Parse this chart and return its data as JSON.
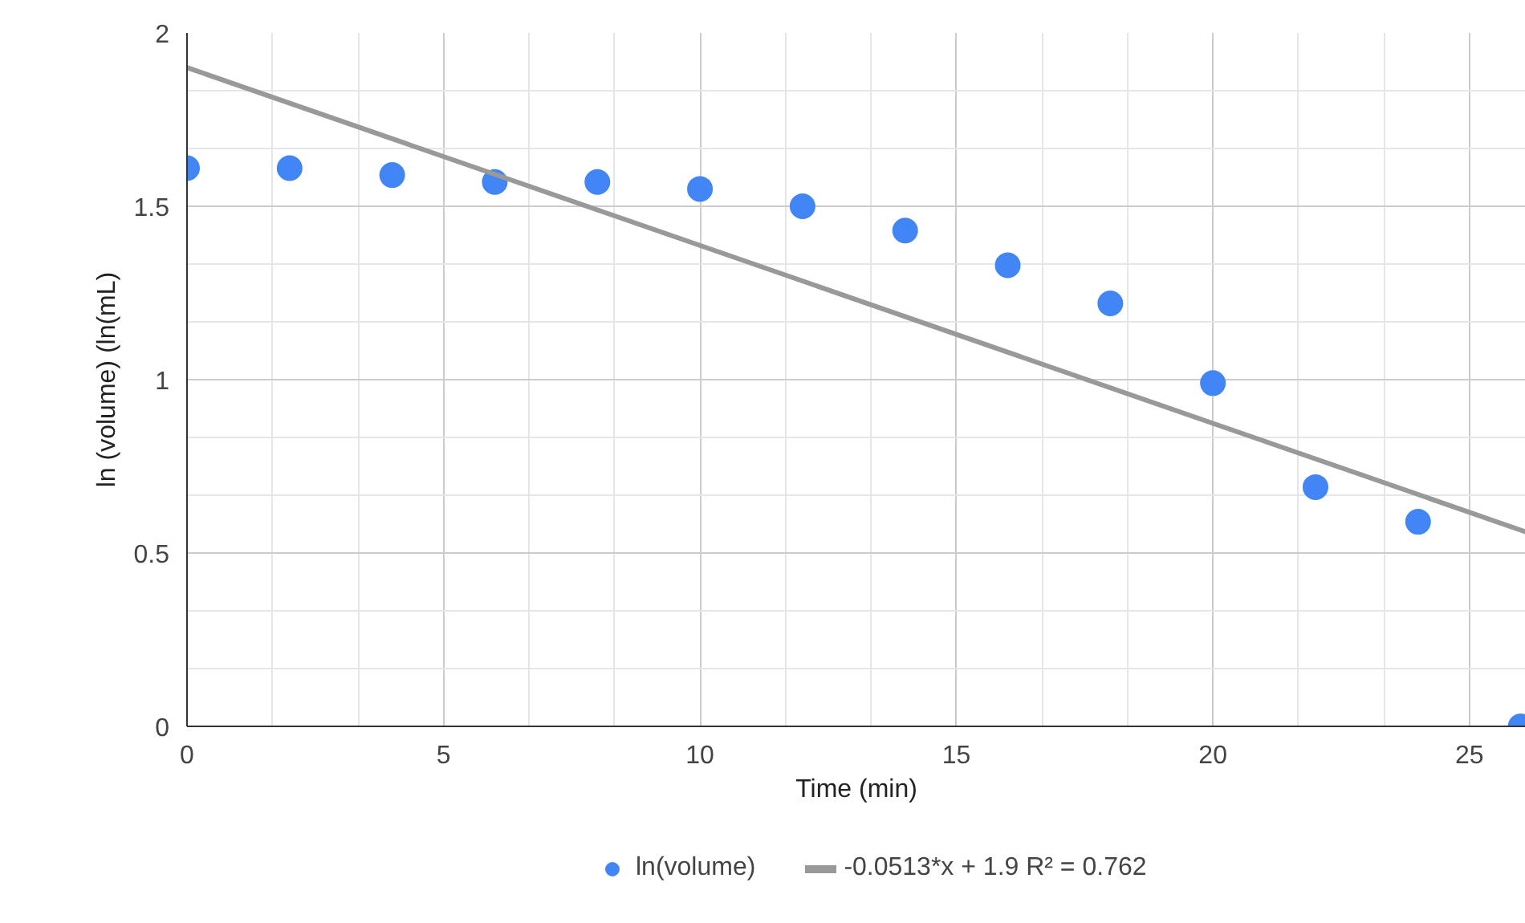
{
  "chart_data": {
    "type": "scatter",
    "xlabel": "Time (min)",
    "ylabel": "ln (volume) (ln(mL)",
    "series": [
      {
        "name": "ln(volume)",
        "marker": "circle",
        "color": "#4285f4",
        "x": [
          0,
          2,
          4,
          6,
          8,
          10,
          12,
          14,
          16,
          18,
          20,
          22,
          24,
          26
        ],
        "values": [
          1.61,
          1.61,
          1.59,
          1.57,
          1.57,
          1.55,
          1.5,
          1.43,
          1.33,
          1.22,
          0.99,
          0.69,
          0.59,
          0
        ]
      },
      {
        "name": "-0.0513*x + 1.9 R² = 0.762",
        "type": "line",
        "marker": "none",
        "color": "#999999",
        "x": [
          0,
          26.1
        ],
        "values": [
          1.9,
          0.561
        ]
      }
    ],
    "xlim": [
      0,
      26.1
    ],
    "ylim": [
      0,
      2
    ],
    "xticks": [
      0,
      5,
      10,
      15,
      20,
      25
    ],
    "yticks": [
      0,
      0.5,
      1,
      1.5,
      2
    ],
    "grid": true,
    "legend": "bottom"
  }
}
